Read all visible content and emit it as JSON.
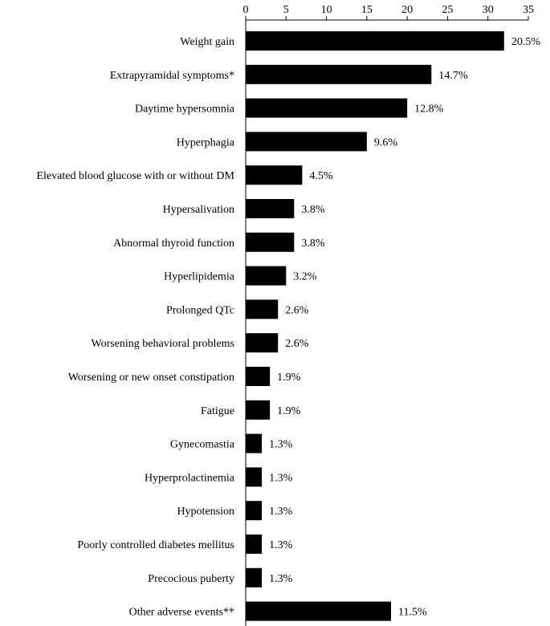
{
  "chart_data": {
    "type": "bar",
    "orientation": "horizontal",
    "axis_position": "top",
    "xlim": [
      0,
      35
    ],
    "xticks": [
      "0",
      "5",
      "10",
      "15",
      "20",
      "25",
      "30",
      "35"
    ],
    "grid": false,
    "legend": "none",
    "bar_color": "#000000",
    "categories": [
      "Weight gain",
      "Extrapyramidal symptoms*",
      "Daytime hypersomnia",
      "Hyperphagia",
      "Elevated blood glucose with or without DM",
      "Hypersalivation",
      "Abnormal thyroid function",
      "Hyperlipidemia",
      "Prolonged QTc",
      "Worsening behavioral problems",
      "Worsening or new onset constipation",
      "Fatigue",
      "Gynecomastia",
      "Hyperprolactinemia",
      "Hypotension",
      "Poorly controlled diabetes mellitus",
      "Precocious puberty",
      "Other adverse events**"
    ],
    "values": [
      32,
      23,
      20,
      15,
      7,
      6,
      6,
      5,
      4,
      4,
      3,
      3,
      2,
      2,
      2,
      2,
      2,
      18
    ],
    "data_labels": [
      "20.5%",
      "14.7%",
      "12.8%",
      "9.6%",
      "4.5%",
      "3.8%",
      "3.8%",
      "3.2%",
      "2.6%",
      "2.6%",
      "1.9%",
      "1.9%",
      "1.3%",
      "1.3%",
      "1.3%",
      "1.3%",
      "1.3%",
      "11.5%"
    ]
  }
}
